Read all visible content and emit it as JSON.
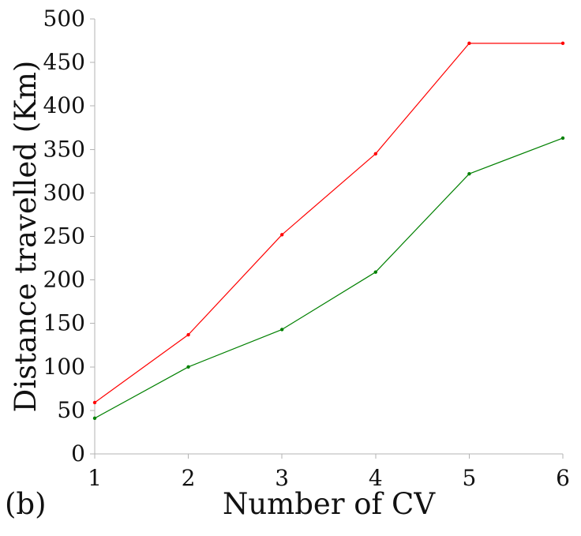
{
  "chart_data": {
    "type": "line",
    "title": "",
    "panel_label": "(b)",
    "xlabel": "Number of CV",
    "ylabel": "Distance travelled (Km)",
    "x": [
      1,
      2,
      3,
      4,
      5,
      6
    ],
    "xlim": [
      1,
      6
    ],
    "ylim": [
      0,
      500
    ],
    "x_ticks": [
      "1",
      "2",
      "3",
      "4",
      "5",
      "6"
    ],
    "y_ticks": [
      "0",
      "50",
      "100",
      "150",
      "200",
      "250",
      "300",
      "350",
      "400",
      "450",
      "500"
    ],
    "grid": false,
    "legend": "none",
    "series": [
      {
        "values": [
          59,
          137,
          252,
          345,
          472,
          472
        ],
        "color": "#ff0000"
      },
      {
        "values": [
          41,
          100,
          143,
          209,
          322,
          363
        ],
        "color": "#008000"
      }
    ]
  }
}
